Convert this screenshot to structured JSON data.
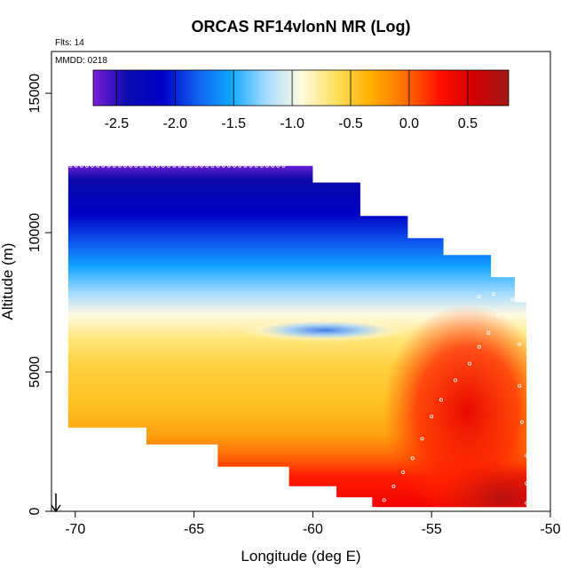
{
  "chart_data": {
    "type": "heatmap",
    "title": "ORCAS RF14vlonN MR (Log)",
    "annotations": {
      "flights": "Flts: 14",
      "date": "MMDD: 0218"
    },
    "xlabel": "Longitude (deg E)",
    "ylabel": "Altitude (m)",
    "xlim": [
      -71,
      -50
    ],
    "ylim": [
      0,
      16500
    ],
    "x_ticks": [
      -70,
      -65,
      -60,
      -55,
      -50
    ],
    "y_ticks": [
      0,
      5000,
      10000,
      15000
    ],
    "x_tick_labels": [
      "-70",
      "-65",
      "-60",
      "-55",
      "-50"
    ],
    "y_tick_labels": [
      "0",
      "5000",
      "10000",
      "15000"
    ],
    "colorbar": {
      "range": [
        -2.7,
        0.85
      ],
      "ticks": [
        -2.5,
        -2.0,
        -1.5,
        -1.0,
        -0.5,
        0.0,
        0.5
      ],
      "tick_labels": [
        "-2.5",
        "-2.0",
        "-1.5",
        "-1.0",
        "-0.5",
        "0.0",
        "0.5"
      ],
      "colors": [
        "#7a1fd8",
        "#0b0bb0",
        "#0000c8",
        "#1060f0",
        "#10a8ff",
        "#a8dcff",
        "#fffbe0",
        "#ffe060",
        "#ffb000",
        "#ff7000",
        "#ff1000",
        "#d40000",
        "#a01818"
      ]
    },
    "data_envelope": {
      "x_left": -70.3,
      "x_right": -51.0,
      "top_profile": [
        [
          -70.3,
          12400
        ],
        [
          -61.0,
          12400
        ],
        [
          -60.0,
          11800
        ],
        [
          -58.0,
          10600
        ],
        [
          -56.0,
          9800
        ],
        [
          -54.5,
          9200
        ],
        [
          -52.5,
          8400
        ],
        [
          -51.5,
          8000
        ],
        [
          -51.5,
          7500
        ],
        [
          -51.0,
          7000
        ],
        [
          -51.0,
          0
        ]
      ],
      "bottom_profile": [
        [
          -70.3,
          3000
        ],
        [
          -67.0,
          2400
        ],
        [
          -64.0,
          1600
        ],
        [
          -61.0,
          900
        ],
        [
          -59.0,
          500
        ],
        [
          -57.5,
          150
        ],
        [
          -51.0,
          0
        ]
      ]
    },
    "grid": false,
    "legend": "colorbar top"
  }
}
